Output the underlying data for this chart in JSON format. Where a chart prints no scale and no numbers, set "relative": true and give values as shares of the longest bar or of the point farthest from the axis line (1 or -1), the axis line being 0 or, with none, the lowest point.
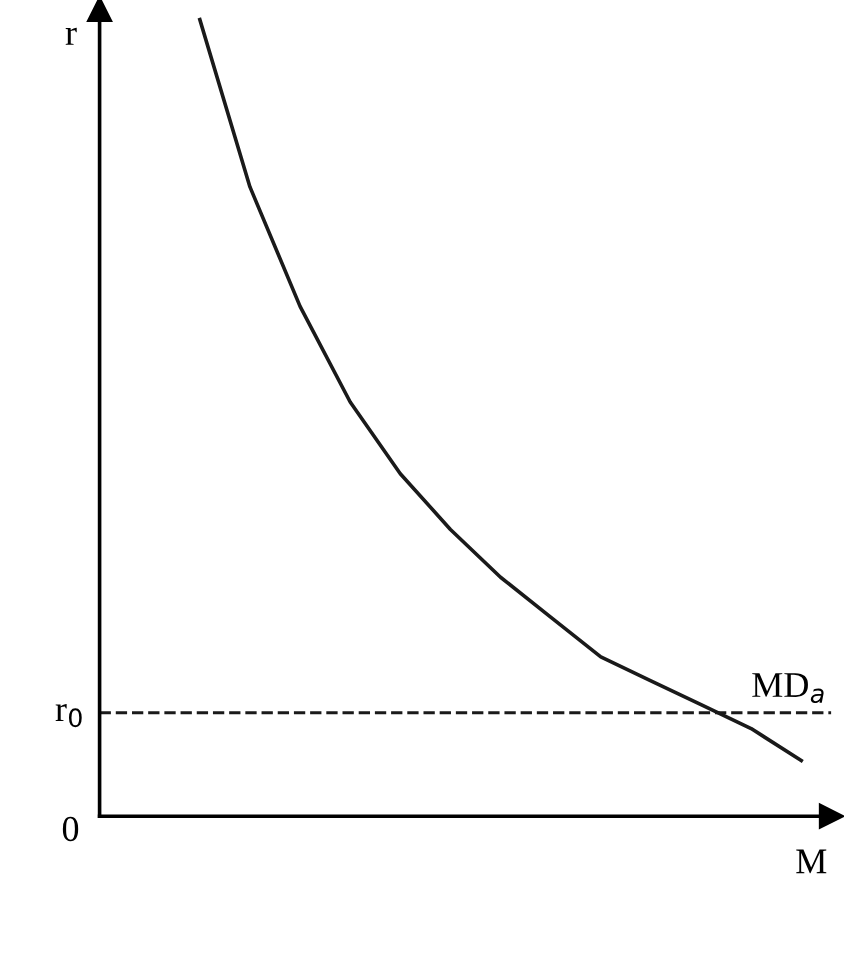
{
  "chart_data": {
    "type": "line",
    "relative": true,
    "xlabel": "M",
    "ylabel": "r",
    "categories": [
      null,
      null,
      null,
      null,
      null,
      null,
      null,
      null,
      null,
      null,
      null,
      null,
      null
    ],
    "series": [
      {
        "color": "#1a1a1a",
        "values": [
          1,
          0.79,
          0.64,
          0.52,
          0.43,
          0.36,
          0.3,
          0.25,
          0.2,
          0.17,
          0.14,
          0.11,
          0.07
        ]
      }
    ],
    "ref_lines": [
      {
        "axis": "y",
        "value": 0.13,
        "label": "r$_{0}$",
        "color": "#1a1a1a",
        "line_style": "dashed"
      }
    ],
    "annotations": [
      "0",
      {
        "text": "MD$_{a}$",
        "y": 0.13
      }
    ],
    "marker": "none",
    "line_style": "solid",
    "legend": false
  }
}
